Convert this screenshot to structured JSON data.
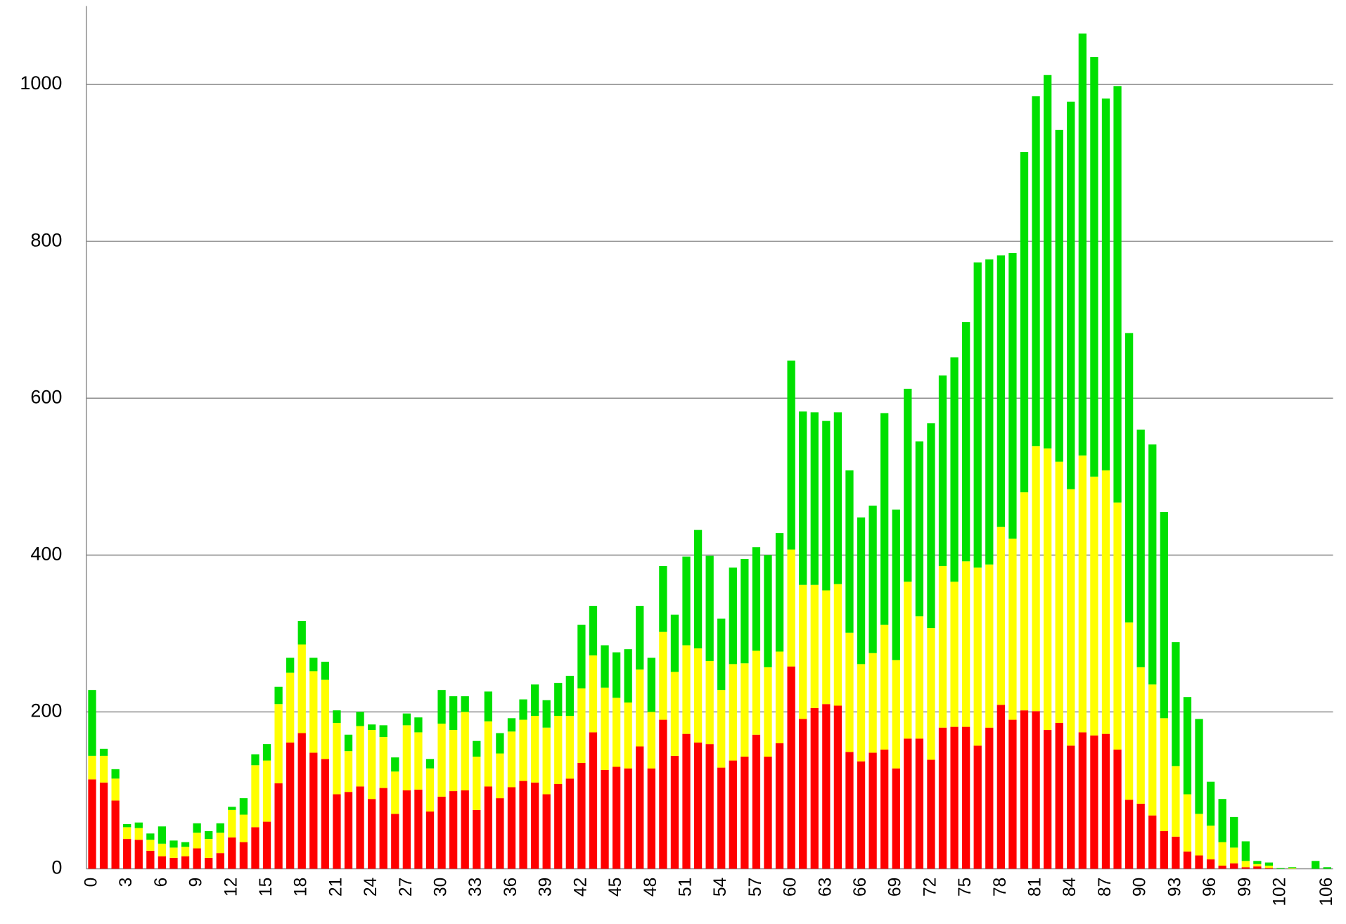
{
  "chart_data": {
    "type": "stacked_bar",
    "categories": [
      0,
      null,
      null,
      3,
      null,
      null,
      6,
      null,
      null,
      9,
      null,
      null,
      12,
      null,
      null,
      15,
      null,
      null,
      18,
      null,
      null,
      21,
      null,
      null,
      24,
      null,
      null,
      27,
      null,
      null,
      30,
      null,
      null,
      33,
      null,
      null,
      36,
      null,
      null,
      39,
      null,
      null,
      42,
      null,
      null,
      45,
      null,
      null,
      48,
      null,
      null,
      51,
      null,
      null,
      54,
      null,
      null,
      57,
      null,
      null,
      60,
      null,
      null,
      63,
      null,
      null,
      66,
      null,
      null,
      69,
      null,
      null,
      72,
      null,
      null,
      75,
      null,
      null,
      78,
      null,
      null,
      81,
      null,
      null,
      84,
      null,
      null,
      87,
      null,
      null,
      90,
      null,
      null,
      93,
      null,
      null,
      96,
      null,
      null,
      99,
      null,
      null,
      102,
      null,
      null,
      null,
      106
    ],
    "series": [
      {
        "color": "#ff0000",
        "values": [
          114,
          110,
          87,
          38,
          37,
          23,
          16,
          14,
          16,
          26,
          14,
          20,
          40,
          34,
          53,
          60,
          109,
          161,
          173,
          148,
          140,
          95,
          98,
          105,
          89,
          103,
          70,
          100,
          101,
          73,
          92,
          99,
          100,
          75,
          105,
          90,
          104,
          112,
          110,
          95,
          108,
          115,
          135,
          174,
          126,
          130,
          128,
          156,
          128,
          190,
          144,
          172,
          161,
          159,
          129,
          138,
          143,
          171,
          143,
          160,
          258,
          191,
          205,
          210,
          208,
          149,
          137,
          148,
          152,
          128,
          166,
          166,
          139,
          180,
          181,
          181,
          157,
          180,
          209,
          190,
          202,
          201,
          177,
          186,
          157,
          174,
          170,
          172,
          152,
          88,
          83,
          68,
          48,
          41,
          22,
          17,
          12,
          4,
          7,
          2,
          3,
          1,
          0,
          0,
          0,
          0,
          0
        ]
      },
      {
        "color": "#ffff00",
        "values": [
          30,
          34,
          28,
          15,
          15,
          14,
          16,
          13,
          12,
          20,
          24,
          26,
          35,
          35,
          79,
          78,
          101,
          89,
          113,
          104,
          101,
          91,
          52,
          77,
          88,
          65,
          54,
          83,
          73,
          55,
          93,
          78,
          100,
          68,
          83,
          57,
          71,
          78,
          85,
          85,
          87,
          80,
          95,
          98,
          105,
          88,
          84,
          98,
          72,
          112,
          107,
          113,
          120,
          106,
          99,
          123,
          119,
          107,
          114,
          117,
          149,
          171,
          157,
          145,
          155,
          152,
          124,
          127,
          159,
          138,
          200,
          156,
          168,
          206,
          185,
          211,
          227,
          208,
          227,
          231,
          278,
          338,
          359,
          333,
          327,
          353,
          330,
          336,
          315,
          226,
          174,
          167,
          144,
          90,
          73,
          53,
          43,
          30,
          20,
          8,
          3,
          3,
          0,
          1,
          0,
          0,
          0
        ]
      },
      {
        "color": "#00e000",
        "values": [
          84,
          9,
          12,
          4,
          7,
          8,
          22,
          9,
          6,
          12,
          10,
          12,
          4,
          21,
          14,
          21,
          22,
          19,
          30,
          17,
          23,
          16,
          21,
          18,
          7,
          15,
          18,
          15,
          19,
          12,
          43,
          43,
          20,
          20,
          38,
          26,
          17,
          26,
          40,
          35,
          42,
          51,
          81,
          63,
          54,
          58,
          68,
          81,
          69,
          84,
          73,
          113,
          151,
          134,
          91,
          123,
          133,
          132,
          143,
          151,
          241,
          221,
          220,
          216,
          219,
          207,
          187,
          188,
          270,
          192,
          246,
          223,
          261,
          243,
          286,
          305,
          389,
          389,
          346,
          364,
          434,
          446,
          476,
          423,
          494,
          538,
          535,
          474,
          531,
          369,
          303,
          306,
          263,
          158,
          124,
          121,
          56,
          55,
          39,
          25,
          4,
          4,
          1,
          1,
          0,
          10,
          2
        ]
      }
    ],
    "ylim": [
      0,
      1100
    ],
    "yticks": [
      0,
      200,
      400,
      600,
      800,
      1000
    ],
    "grid": true
  }
}
